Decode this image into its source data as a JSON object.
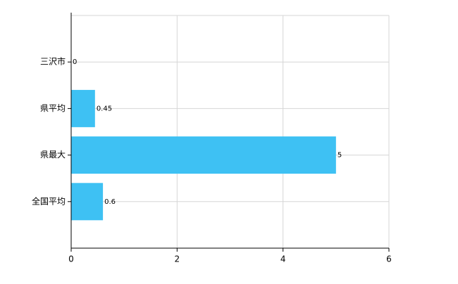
{
  "chart_data": {
    "type": "barh",
    "categories": [
      "三沢市",
      "県平均",
      "県最大",
      "全国平均"
    ],
    "values": [
      0,
      0.45,
      5,
      0.6
    ],
    "color": "#3ec1f3",
    "xlim": [
      0,
      6
    ],
    "xticks": [
      0,
      2,
      4,
      6
    ],
    "grid": true
  }
}
